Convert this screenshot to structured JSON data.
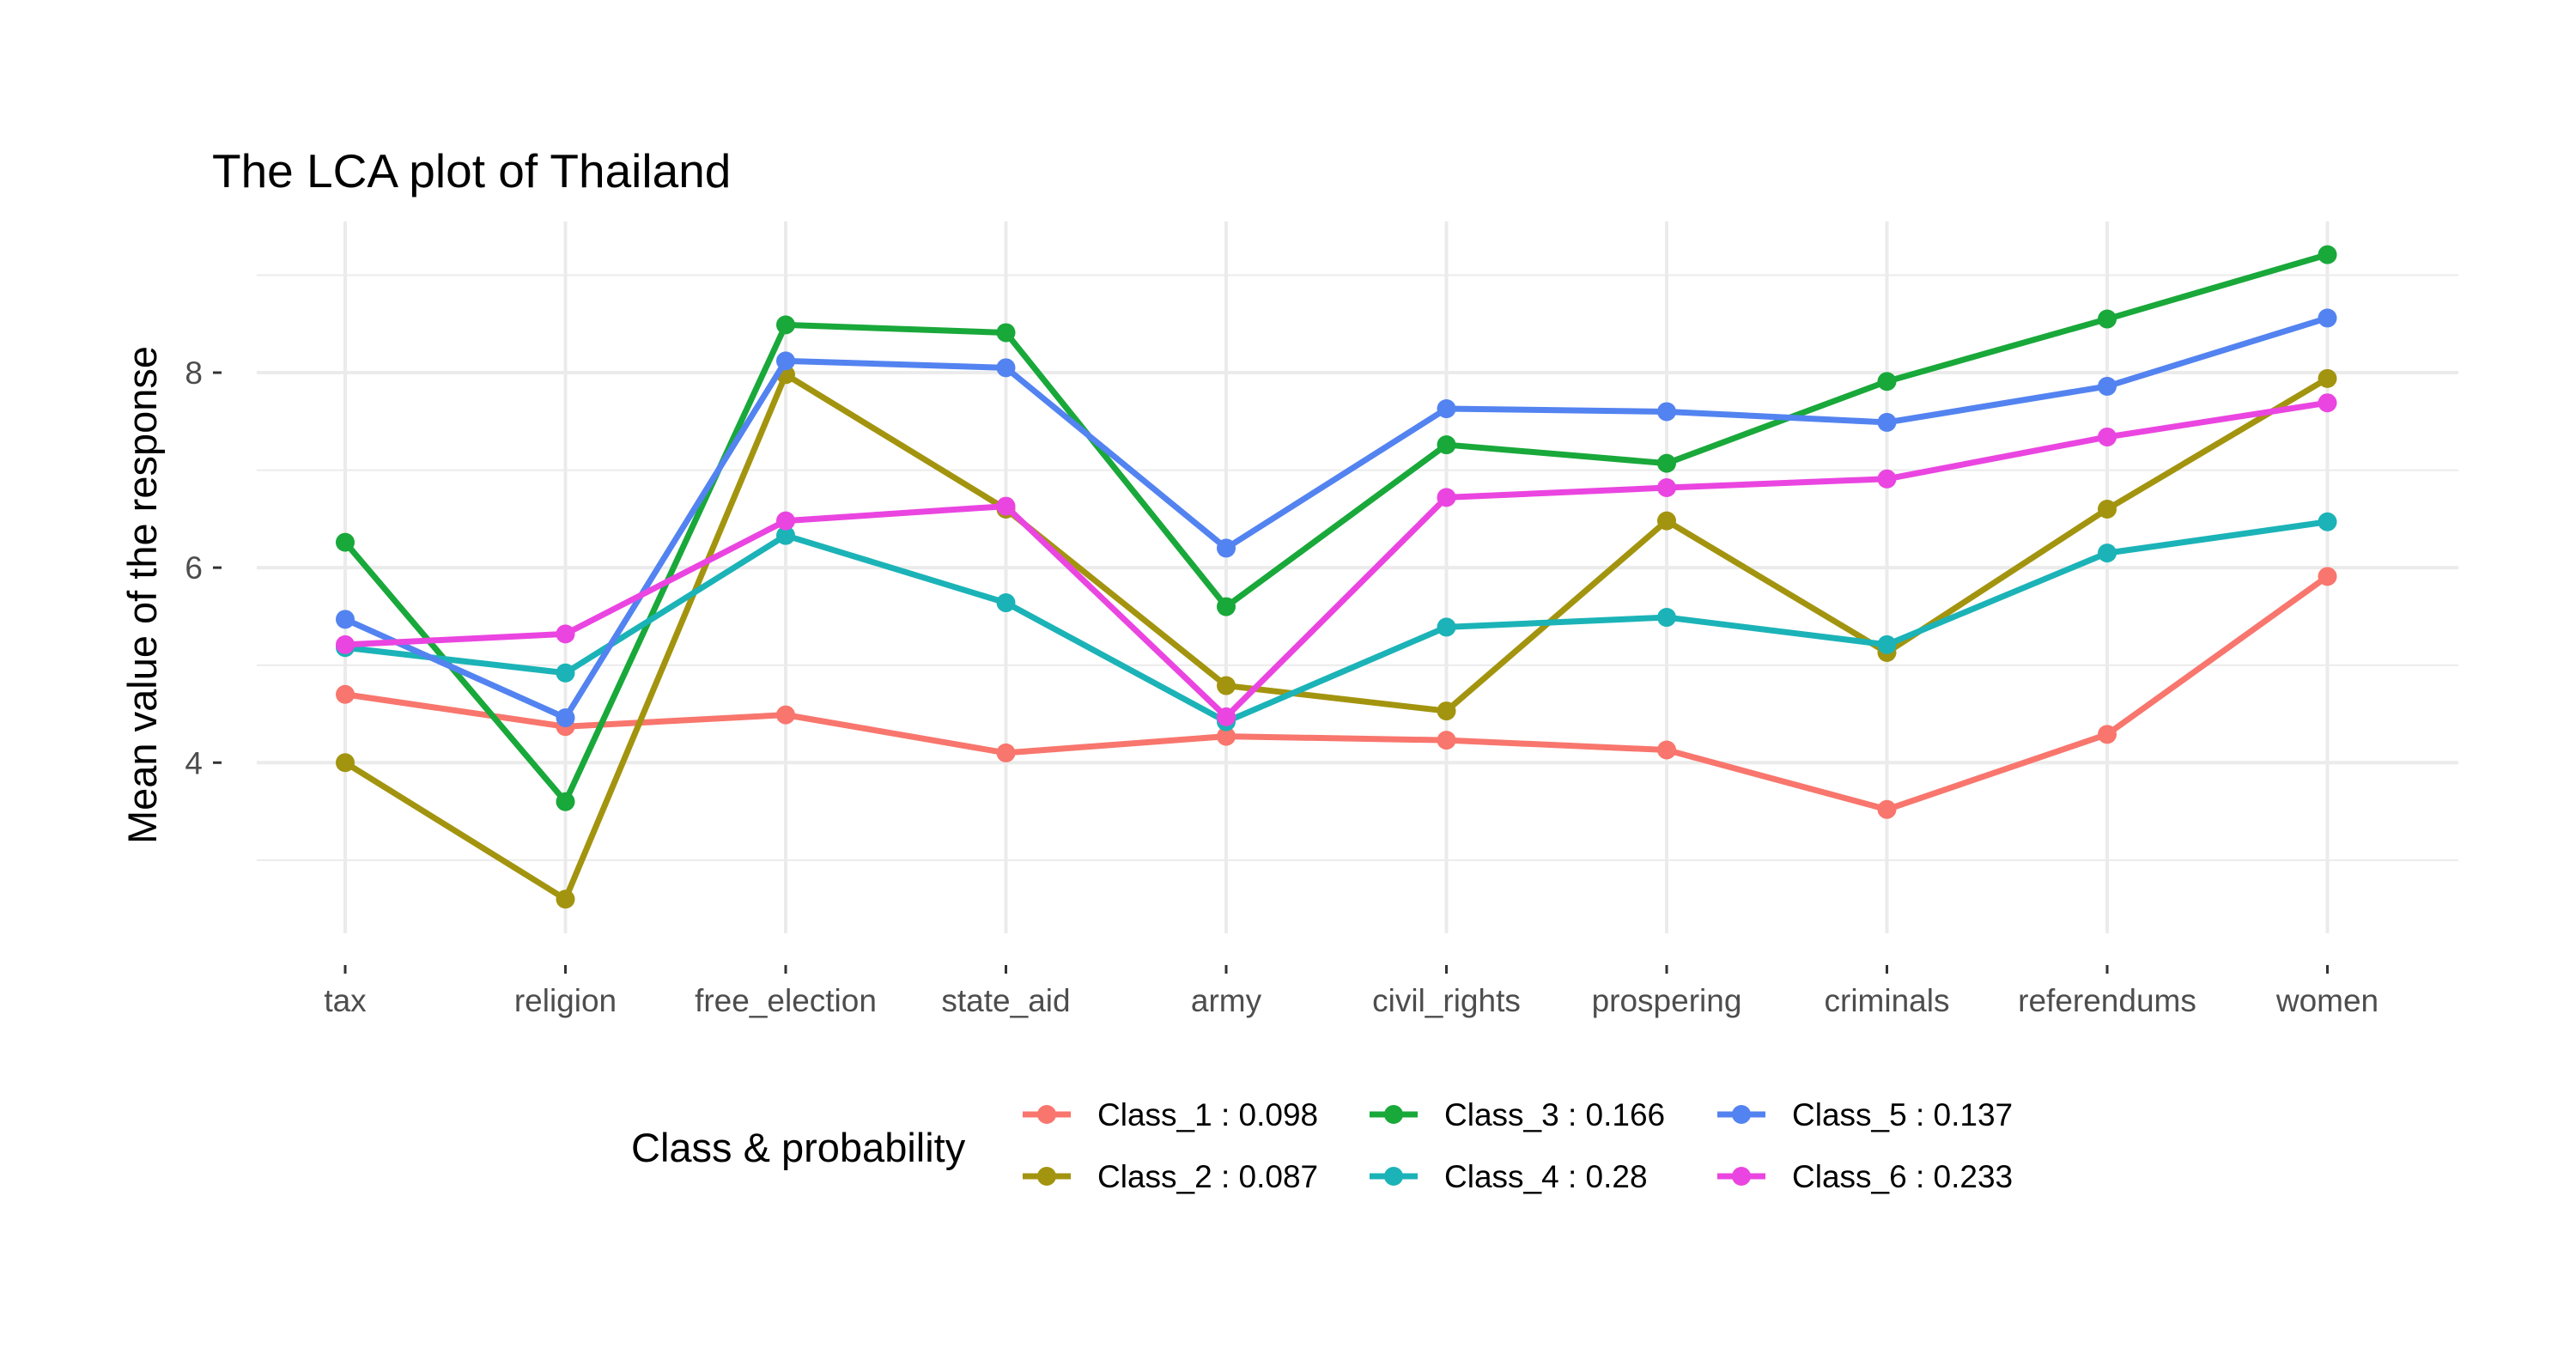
{
  "chart_data": {
    "type": "line",
    "title": "The LCA plot of Thailand",
    "xlabel": "",
    "ylabel": "Mean value of the response",
    "categories": [
      "tax",
      "religion",
      "free_election",
      "state_aid",
      "army",
      "civil_rights",
      "prospering",
      "criminals",
      "referendums",
      "women"
    ],
    "ylim": [
      2.25,
      9.55
    ],
    "yticks": [
      4,
      6,
      8
    ],
    "grid": true,
    "legend_title": "Class & probability",
    "legend_position": "bottom",
    "series": [
      {
        "name": "Class_1 : 0.098",
        "color": "#F8766D",
        "values": [
          4.7,
          4.37,
          4.49,
          4.1,
          4.27,
          4.23,
          4.13,
          3.52,
          4.29,
          5.91
        ]
      },
      {
        "name": "Class_2 : 0.087",
        "color": "#A3940F",
        "values": [
          4.0,
          2.6,
          7.98,
          6.6,
          4.79,
          4.53,
          6.48,
          5.13,
          6.6,
          7.94
        ]
      },
      {
        "name": "Class_3 : 0.166",
        "color": "#19A83A",
        "values": [
          6.26,
          3.6,
          8.49,
          8.41,
          5.6,
          7.26,
          7.07,
          7.91,
          8.55,
          9.21
        ]
      },
      {
        "name": "Class_4 : 0.28",
        "color": "#1BB3B7",
        "values": [
          5.18,
          4.92,
          6.33,
          5.64,
          4.42,
          5.39,
          5.49,
          5.21,
          6.15,
          6.47
        ]
      },
      {
        "name": "Class_5 : 0.137",
        "color": "#5383F0",
        "values": [
          5.47,
          4.46,
          8.12,
          8.05,
          6.2,
          7.63,
          7.6,
          7.49,
          7.86,
          8.56
        ]
      },
      {
        "name": "Class_6 : 0.233",
        "color": "#EA45E0",
        "values": [
          5.21,
          5.32,
          6.48,
          6.63,
          4.47,
          6.72,
          6.82,
          6.91,
          7.34,
          7.69
        ]
      }
    ]
  }
}
